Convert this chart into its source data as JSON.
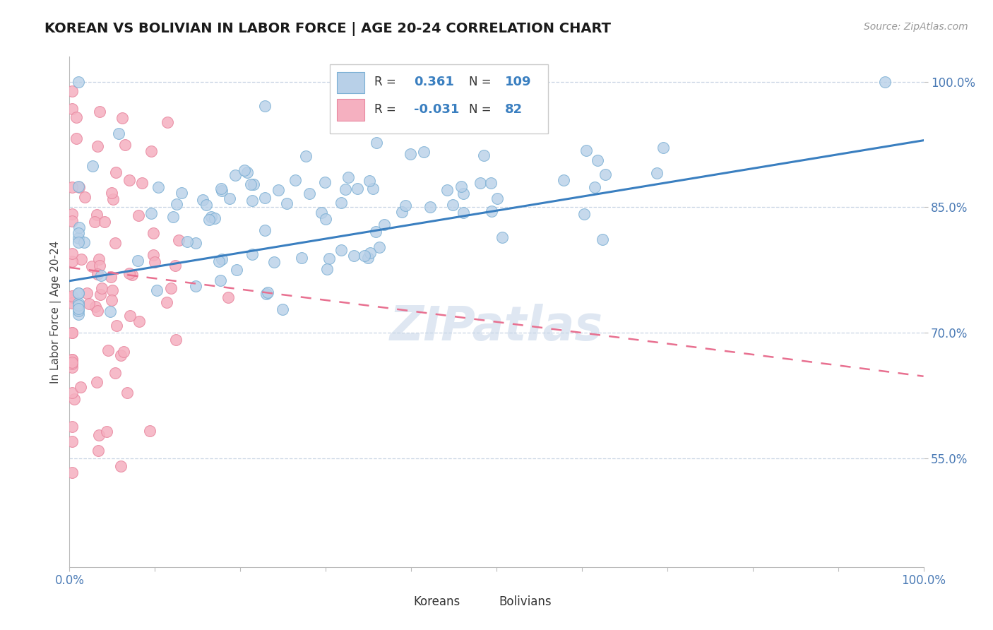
{
  "title": "KOREAN VS BOLIVIAN IN LABOR FORCE | AGE 20-24 CORRELATION CHART",
  "source_text": "Source: ZipAtlas.com",
  "ylabel": "In Labor Force | Age 20-24",
  "xlim": [
    0.0,
    1.0
  ],
  "ylim": [
    0.42,
    1.03
  ],
  "x_ticks": [
    0.0,
    0.1,
    0.2,
    0.3,
    0.4,
    0.5,
    0.6,
    0.7,
    0.8,
    0.9,
    1.0
  ],
  "x_tick_labels": [
    "0.0%",
    "",
    "",
    "",
    "",
    "",
    "",
    "",
    "",
    "",
    "100.0%"
  ],
  "y_ticks": [
    0.55,
    0.7,
    0.85,
    1.0
  ],
  "y_tick_labels": [
    "55.0%",
    "70.0%",
    "85.0%",
    "100.0%"
  ],
  "korean_color": "#b8d0e8",
  "bolivian_color": "#f5b0c0",
  "korean_edge_color": "#7aafd4",
  "bolivian_edge_color": "#e888a0",
  "trend_korean_color": "#3a7fc0",
  "trend_bolivian_color": "#e87090",
  "korean_R": 0.361,
  "korean_N": 109,
  "bolivian_R": -0.031,
  "bolivian_N": 82,
  "legend_label_korean": "Koreans",
  "legend_label_bolivian": "Bolivians",
  "watermark": "ZIPatlas",
  "background_color": "#ffffff",
  "grid_color": "#c8d4e4",
  "korean_trend_x0": 0.0,
  "korean_trend_y0": 0.762,
  "korean_trend_x1": 1.0,
  "korean_trend_y1": 0.93,
  "bolivian_trend_x0": 0.0,
  "bolivian_trend_y0": 0.778,
  "bolivian_trend_x1": 1.0,
  "bolivian_trend_y1": 0.648
}
